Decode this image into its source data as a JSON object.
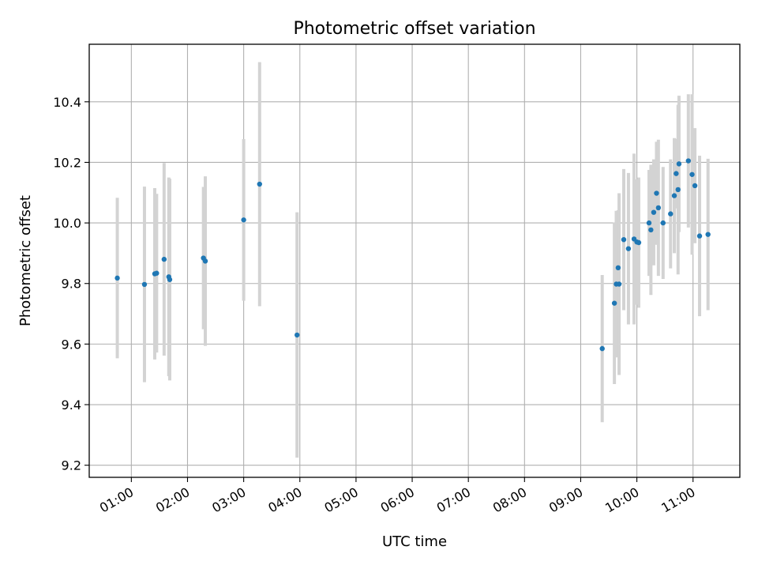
{
  "chart_data": {
    "type": "scatter",
    "title": "Photometric offset variation",
    "xlabel": "UTC time",
    "ylabel": "Photometric offset",
    "grid": true,
    "x_unit": "UTC time",
    "xlim": [
      "00:15",
      "11:50"
    ],
    "ylim": [
      9.16,
      10.59
    ],
    "xticks": [
      "01:00",
      "02:00",
      "03:00",
      "04:00",
      "05:00",
      "06:00",
      "07:00",
      "08:00",
      "09:00",
      "10:00",
      "11:00"
    ],
    "yticks": [
      9.2,
      9.4,
      9.6,
      9.8,
      10.0,
      10.2,
      10.4
    ],
    "ytick_labels": [
      "9.2",
      "9.4",
      "9.6",
      "9.8",
      "10.0",
      "10.2",
      "10.4"
    ],
    "marker_color": "#1f77b4",
    "errorbar_color": "#d3d3d3",
    "series": [
      {
        "points": [
          {
            "x": "00:45",
            "y": 9.818,
            "yerr": 0.265
          },
          {
            "x": "01:14",
            "y": 9.797,
            "yerr": 0.323
          },
          {
            "x": "01:25",
            "y": 9.832,
            "yerr": 0.283
          },
          {
            "x": "01:27",
            "y": 9.834,
            "yerr": 0.262
          },
          {
            "x": "01:35",
            "y": 9.88,
            "yerr": 0.318
          },
          {
            "x": "01:40",
            "y": 9.822,
            "yerr": 0.328
          },
          {
            "x": "01:41",
            "y": 9.813,
            "yerr": 0.333
          },
          {
            "x": "02:17",
            "y": 9.884,
            "yerr": 0.235
          },
          {
            "x": "02:19",
            "y": 9.874,
            "yerr": 0.28
          },
          {
            "x": "03:00",
            "y": 10.01,
            "yerr": 0.267
          },
          {
            "x": "03:17",
            "y": 10.128,
            "yerr": 0.403
          },
          {
            "x": "03:57",
            "y": 9.63,
            "yerr": 0.405
          },
          {
            "x": "09:23",
            "y": 9.585,
            "yerr": 0.243
          },
          {
            "x": "09:36",
            "y": 9.735,
            "yerr": 0.267
          },
          {
            "x": "09:38",
            "y": 9.798,
            "yerr": 0.242
          },
          {
            "x": "09:40",
            "y": 9.852,
            "yerr": 0.19
          },
          {
            "x": "09:41",
            "y": 9.798,
            "yerr": 0.3
          },
          {
            "x": "09:46",
            "y": 9.945,
            "yerr": 0.233
          },
          {
            "x": "09:51",
            "y": 9.915,
            "yerr": 0.25
          },
          {
            "x": "09:57",
            "y": 9.947,
            "yerr": 0.282
          },
          {
            "x": "10:00",
            "y": 9.937,
            "yerr": 0.207
          },
          {
            "x": "10:02",
            "y": 9.935,
            "yerr": 0.215
          },
          {
            "x": "10:13",
            "y": 10.0,
            "yerr": 0.175
          },
          {
            "x": "10:15",
            "y": 9.977,
            "yerr": 0.215
          },
          {
            "x": "10:18",
            "y": 10.035,
            "yerr": 0.175
          },
          {
            "x": "10:21",
            "y": 10.098,
            "yerr": 0.17
          },
          {
            "x": "10:23",
            "y": 10.05,
            "yerr": 0.225
          },
          {
            "x": "10:28",
            "y": 10.0,
            "yerr": 0.185
          },
          {
            "x": "10:36",
            "y": 10.03,
            "yerr": 0.18
          },
          {
            "x": "10:40",
            "y": 10.09,
            "yerr": 0.19
          },
          {
            "x": "10:42",
            "y": 10.163,
            "yerr": 0.115
          },
          {
            "x": "10:44",
            "y": 10.11,
            "yerr": 0.28
          },
          {
            "x": "10:45",
            "y": 10.195,
            "yerr": 0.225
          },
          {
            "x": "10:55",
            "y": 10.205,
            "yerr": 0.22
          },
          {
            "x": "10:59",
            "y": 10.16,
            "yerr": 0.265
          },
          {
            "x": "11:02",
            "y": 10.123,
            "yerr": 0.19
          },
          {
            "x": "11:07",
            "y": 9.957,
            "yerr": 0.265
          },
          {
            "x": "11:16",
            "y": 9.962,
            "yerr": 0.25
          }
        ]
      }
    ]
  }
}
